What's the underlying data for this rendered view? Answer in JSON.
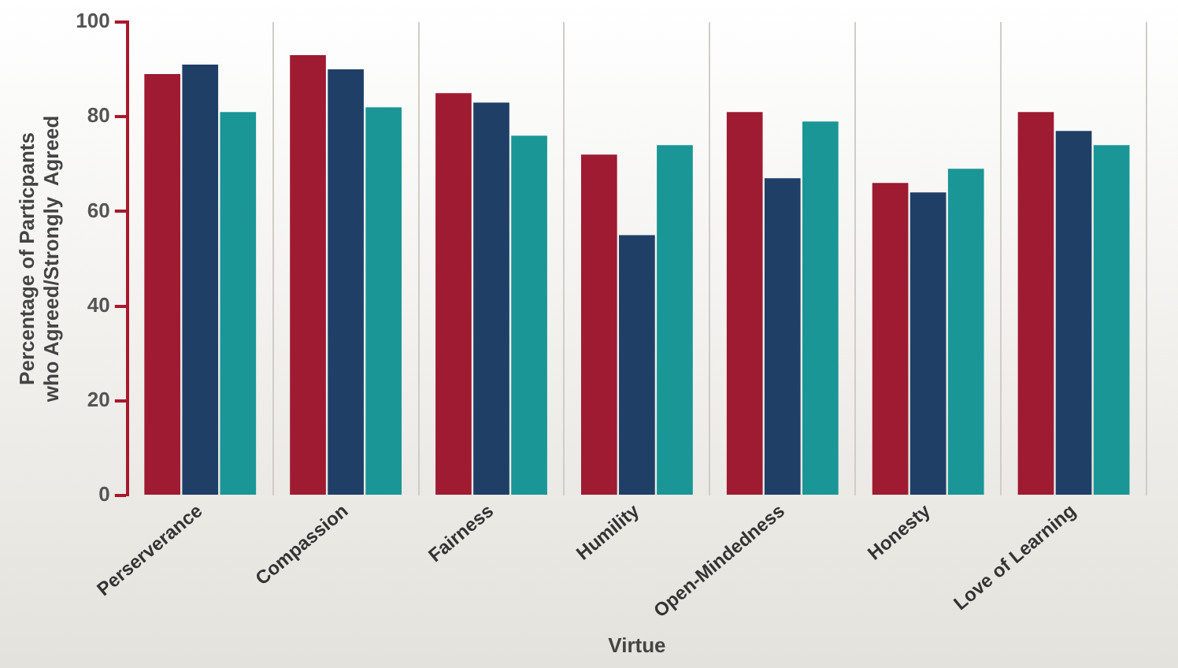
{
  "chart_data": {
    "type": "bar",
    "xlabel": "Virtue",
    "ylabel": "Percentage of Particpants\nwho Agreed/Strongly  Agreed",
    "categories": [
      "Perserverance",
      "Compassion",
      "Fairness",
      "Humility",
      "Open-Mindedness",
      "Honesty",
      "Love of Learning"
    ],
    "series": [
      {
        "color": "#9e1b32",
        "values": [
          89,
          93,
          85,
          72,
          81,
          66,
          81
        ]
      },
      {
        "color": "#1f3f66",
        "values": [
          91,
          90,
          83,
          55,
          67,
          64,
          77
        ]
      },
      {
        "color": "#1a9696",
        "values": [
          81,
          82,
          76,
          74,
          79,
          69,
          74
        ]
      }
    ],
    "ylim": [
      0,
      100
    ],
    "yticks": [
      0,
      20,
      40,
      60,
      80,
      100
    ],
    "grid": "x",
    "legend": false
  }
}
